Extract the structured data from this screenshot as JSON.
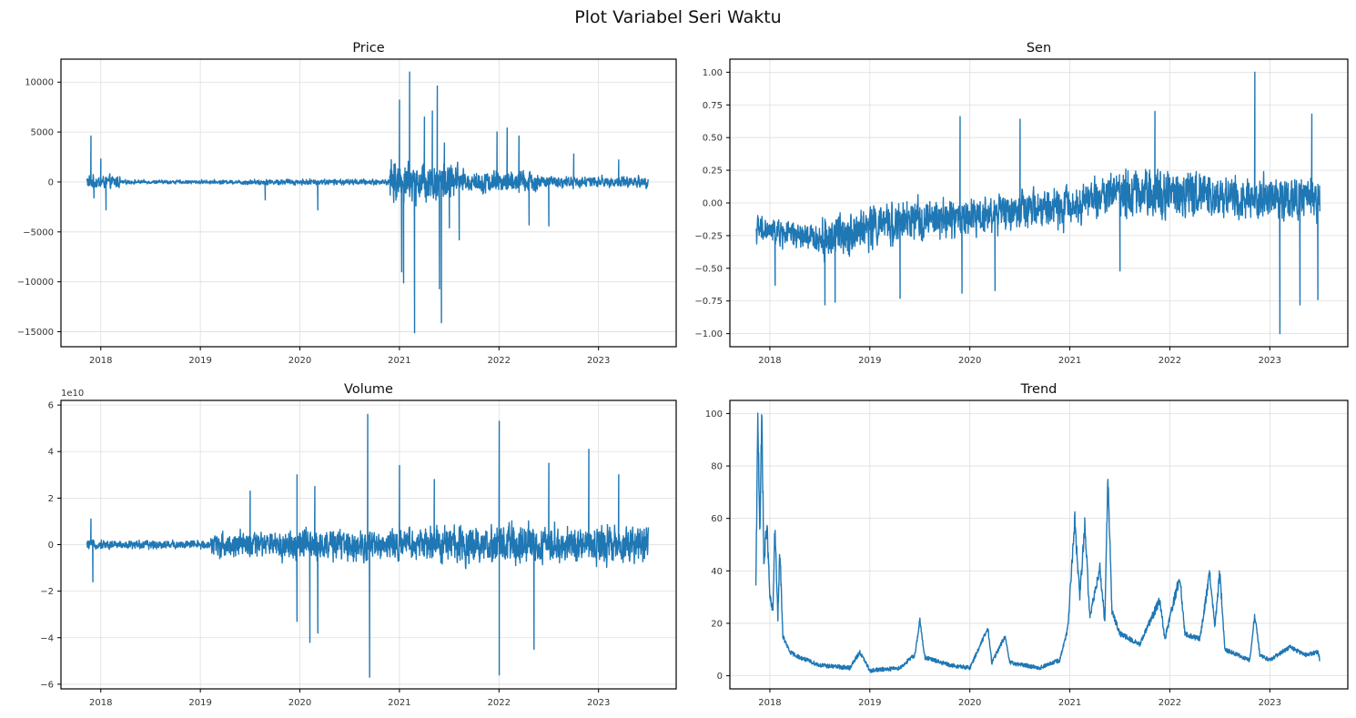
{
  "figure": {
    "suptitle": "Plot Variabel Seri Waktu",
    "line_color": "#1f77b4",
    "grid_color": "#dddddd"
  },
  "chart_data": [
    {
      "type": "line",
      "title": "Price",
      "x_range": [
        "2017-11-09",
        "2023-06-30"
      ],
      "xlim": [
        2017.6,
        2023.78
      ],
      "ylim": [
        -16500,
        12300
      ],
      "y_ticks": [
        10000,
        5000,
        0,
        -5000,
        -10000,
        -15000
      ],
      "y_tick_labels": [
        "10000",
        "5000",
        "0",
        "−5000",
        "−10000",
        "−15000"
      ],
      "x_ticks": [
        2018,
        2019,
        2020,
        2021,
        2022,
        2023
      ],
      "x_tick_labels": [
        "2018",
        "2019",
        "2020",
        "2021",
        "2022",
        "2023"
      ],
      "y_offset_label": "",
      "grid": true,
      "series": [
        {
          "baseline": 0,
          "noise_segments": [
            {
              "from": 2017.86,
              "to": 2018.2,
              "amp": 900
            },
            {
              "from": 2018.2,
              "to": 2019.4,
              "amp": 250
            },
            {
              "from": 2019.4,
              "to": 2020.9,
              "amp": 380
            },
            {
              "from": 2020.9,
              "to": 2021.6,
              "amp": 2600
            },
            {
              "from": 2021.6,
              "to": 2022.4,
              "amp": 1500
            },
            {
              "from": 2022.4,
              "to": 2023.5,
              "amp": 750
            }
          ],
          "spikes": [
            {
              "x": 2017.9,
              "y": 4600
            },
            {
              "x": 2017.93,
              "y": -1600
            },
            {
              "x": 2018.0,
              "y": 2300
            },
            {
              "x": 2018.05,
              "y": -2800
            },
            {
              "x": 2019.65,
              "y": -1800
            },
            {
              "x": 2020.18,
              "y": -2800
            },
            {
              "x": 2020.95,
              "y": 1800
            },
            {
              "x": 2021.0,
              "y": 8200
            },
            {
              "x": 2021.02,
              "y": -9000
            },
            {
              "x": 2021.04,
              "y": -10100
            },
            {
              "x": 2021.1,
              "y": 11000
            },
            {
              "x": 2021.15,
              "y": -15100
            },
            {
              "x": 2021.25,
              "y": 6500
            },
            {
              "x": 2021.33,
              "y": 7100
            },
            {
              "x": 2021.38,
              "y": 9600
            },
            {
              "x": 2021.4,
              "y": -10700
            },
            {
              "x": 2021.42,
              "y": -14100
            },
            {
              "x": 2021.45,
              "y": 3900
            },
            {
              "x": 2021.5,
              "y": -4600
            },
            {
              "x": 2021.6,
              "y": -5800
            },
            {
              "x": 2021.98,
              "y": 5000
            },
            {
              "x": 2022.08,
              "y": 5400
            },
            {
              "x": 2022.2,
              "y": 4600
            },
            {
              "x": 2022.3,
              "y": -4300
            },
            {
              "x": 2022.5,
              "y": -4400
            },
            {
              "x": 2022.75,
              "y": 2800
            },
            {
              "x": 2023.2,
              "y": 2200
            }
          ]
        }
      ]
    },
    {
      "type": "line",
      "title": "Sen",
      "x_range": [
        "2017-11-09",
        "2023-06-30"
      ],
      "xlim": [
        2017.6,
        2023.78
      ],
      "ylim": [
        -1.1,
        1.1
      ],
      "y_ticks": [
        1.0,
        0.75,
        0.5,
        0.25,
        0.0,
        -0.25,
        -0.5,
        -0.75,
        -1.0
      ],
      "y_tick_labels": [
        "1.00",
        "0.75",
        "0.50",
        "0.25",
        "0.00",
        "−0.25",
        "−0.50",
        "−0.75",
        "−1.00"
      ],
      "x_ticks": [
        2018,
        2019,
        2020,
        2021,
        2022,
        2023
      ],
      "x_tick_labels": [
        "2018",
        "2019",
        "2020",
        "2021",
        "2022",
        "2023"
      ],
      "y_offset_label": "",
      "grid": true,
      "series": [
        {
          "trend_points": [
            [
              2017.86,
              -0.2
            ],
            [
              2018.5,
              -0.28
            ],
            [
              2019.0,
              -0.18
            ],
            [
              2020.0,
              -0.1
            ],
            [
              2021.0,
              -0.02
            ],
            [
              2021.5,
              0.1
            ],
            [
              2022.0,
              0.08
            ],
            [
              2023.5,
              0.02
            ]
          ],
          "noise_segments": [
            {
              "from": 2017.86,
              "to": 2018.5,
              "amp": 0.14
            },
            {
              "from": 2018.5,
              "to": 2019.5,
              "amp": 0.22
            },
            {
              "from": 2019.5,
              "to": 2021.5,
              "amp": 0.2
            },
            {
              "from": 2021.5,
              "to": 2022.4,
              "amp": 0.26
            },
            {
              "from": 2022.4,
              "to": 2023.5,
              "amp": 0.22
            }
          ],
          "spikes": [
            {
              "x": 2018.05,
              "y": -0.63
            },
            {
              "x": 2018.55,
              "y": -0.78
            },
            {
              "x": 2018.65,
              "y": -0.76
            },
            {
              "x": 2019.3,
              "y": -0.73
            },
            {
              "x": 2019.9,
              "y": 0.66
            },
            {
              "x": 2019.92,
              "y": -0.69
            },
            {
              "x": 2020.25,
              "y": -0.67
            },
            {
              "x": 2020.5,
              "y": 0.64
            },
            {
              "x": 2021.5,
              "y": -0.52
            },
            {
              "x": 2021.85,
              "y": 0.7
            },
            {
              "x": 2022.85,
              "y": 1.0
            },
            {
              "x": 2023.1,
              "y": -1.0
            },
            {
              "x": 2023.42,
              "y": 0.68
            },
            {
              "x": 2023.48,
              "y": -0.74
            },
            {
              "x": 2023.3,
              "y": -0.78
            }
          ]
        }
      ]
    },
    {
      "type": "line",
      "title": "Volume",
      "x_range": [
        "2017-11-09",
        "2023-06-30"
      ],
      "xlim": [
        2017.6,
        2023.78
      ],
      "ylim": [
        -6.2,
        6.2
      ],
      "y_ticks": [
        6,
        4,
        2,
        0,
        -2,
        -4,
        -6
      ],
      "y_tick_labels": [
        "6",
        "4",
        "2",
        "0",
        "−2",
        "−4",
        "−6"
      ],
      "x_ticks": [
        2018,
        2019,
        2020,
        2021,
        2022,
        2023
      ],
      "x_tick_labels": [
        "2018",
        "2019",
        "2020",
        "2021",
        "2022",
        "2023"
      ],
      "y_offset_label": "1e10",
      "grid": true,
      "series": [
        {
          "baseline": 0,
          "noise_segments": [
            {
              "from": 2017.86,
              "to": 2019.1,
              "amp": 0.25
            },
            {
              "from": 2019.1,
              "to": 2019.8,
              "amp": 0.7
            },
            {
              "from": 2019.8,
              "to": 2021.3,
              "amp": 0.9
            },
            {
              "from": 2021.3,
              "to": 2023.5,
              "amp": 1.1
            }
          ],
          "spikes": [
            {
              "x": 2017.9,
              "y": 1.1
            },
            {
              "x": 2017.92,
              "y": -1.6
            },
            {
              "x": 2019.5,
              "y": 2.3
            },
            {
              "x": 2019.97,
              "y": -3.3
            },
            {
              "x": 2019.97,
              "y": 3.0
            },
            {
              "x": 2020.1,
              "y": -4.2
            },
            {
              "x": 2020.15,
              "y": 2.5
            },
            {
              "x": 2020.18,
              "y": -3.8
            },
            {
              "x": 2020.68,
              "y": 5.6
            },
            {
              "x": 2020.7,
              "y": -5.7
            },
            {
              "x": 2021.0,
              "y": 3.4
            },
            {
              "x": 2021.35,
              "y": 2.8
            },
            {
              "x": 2022.0,
              "y": 5.3
            },
            {
              "x": 2022.0,
              "y": -5.6
            },
            {
              "x": 2022.35,
              "y": -4.5
            },
            {
              "x": 2022.5,
              "y": 3.5
            },
            {
              "x": 2022.9,
              "y": 4.1
            },
            {
              "x": 2023.2,
              "y": 3.0
            }
          ]
        }
      ]
    },
    {
      "type": "line",
      "title": "Trend",
      "x_range": [
        "2017-11-09",
        "2023-06-30"
      ],
      "xlim": [
        2017.6,
        2023.78
      ],
      "ylim": [
        -5,
        105
      ],
      "y_ticks": [
        100,
        80,
        60,
        40,
        20,
        0
      ],
      "y_tick_labels": [
        "100",
        "80",
        "60",
        "40",
        "20",
        "0"
      ],
      "x_ticks": [
        2018,
        2019,
        2020,
        2021,
        2022,
        2023
      ],
      "x_tick_labels": [
        "2018",
        "2019",
        "2020",
        "2021",
        "2022",
        "2023"
      ],
      "y_offset_label": "",
      "grid": true,
      "series": [
        {
          "shape_points": [
            [
              2017.86,
              33
            ],
            [
              2017.88,
              99
            ],
            [
              2017.9,
              55
            ],
            [
              2017.92,
              100
            ],
            [
              2017.94,
              42
            ],
            [
              2017.97,
              58
            ],
            [
              2018.0,
              30
            ],
            [
              2018.03,
              24
            ],
            [
              2018.05,
              57
            ],
            [
              2018.08,
              22
            ],
            [
              2018.1,
              48
            ],
            [
              2018.13,
              15
            ],
            [
              2018.2,
              9
            ],
            [
              2018.3,
              7
            ],
            [
              2018.5,
              4
            ],
            [
              2018.8,
              3
            ],
            [
              2018.9,
              9
            ],
            [
              2019.0,
              2
            ],
            [
              2019.3,
              3
            ],
            [
              2019.45,
              8
            ],
            [
              2019.5,
              21
            ],
            [
              2019.55,
              7
            ],
            [
              2019.8,
              4
            ],
            [
              2020.0,
              3
            ],
            [
              2020.18,
              18
            ],
            [
              2020.22,
              5
            ],
            [
              2020.35,
              15
            ],
            [
              2020.4,
              5
            ],
            [
              2020.7,
              3
            ],
            [
              2020.9,
              6
            ],
            [
              2020.98,
              18
            ],
            [
              2021.0,
              30
            ],
            [
              2021.05,
              59
            ],
            [
              2021.1,
              30
            ],
            [
              2021.15,
              58
            ],
            [
              2021.2,
              22
            ],
            [
              2021.3,
              42
            ],
            [
              2021.35,
              20
            ],
            [
              2021.38,
              78
            ],
            [
              2021.42,
              25
            ],
            [
              2021.5,
              16
            ],
            [
              2021.7,
              12
            ],
            [
              2021.9,
              29
            ],
            [
              2021.95,
              14
            ],
            [
              2022.1,
              38
            ],
            [
              2022.15,
              16
            ],
            [
              2022.3,
              14
            ],
            [
              2022.4,
              39
            ],
            [
              2022.45,
              18
            ],
            [
              2022.5,
              40
            ],
            [
              2022.55,
              10
            ],
            [
              2022.8,
              6
            ],
            [
              2022.85,
              23
            ],
            [
              2022.9,
              8
            ],
            [
              2023.0,
              6
            ],
            [
              2023.2,
              11
            ],
            [
              2023.35,
              8
            ],
            [
              2023.48,
              9
            ],
            [
              2023.5,
              6
            ]
          ],
          "noise_amp": 1.6
        }
      ]
    }
  ]
}
